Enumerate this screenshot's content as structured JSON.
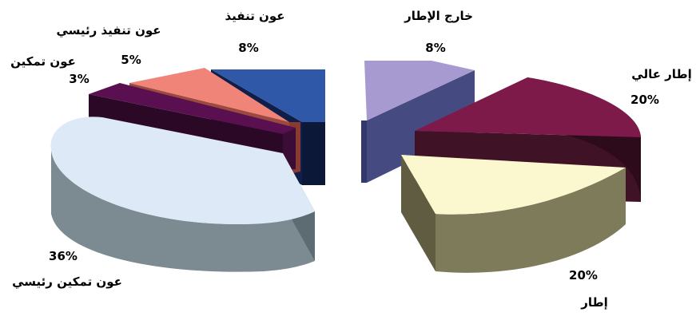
{
  "chart_data": {
    "type": "pie",
    "style": "3d-exploded",
    "labels": [
      {
        "name": "عون تنفيذ",
        "value": 8,
        "display": "8%",
        "color": "#2f58a8",
        "side_color": "#0f1f4a"
      },
      {
        "name": "عون تنفيذ رئيسي",
        "value": 5,
        "display": "5%",
        "color": "#f08478",
        "side_color": "#8a3a30"
      },
      {
        "name": "عون تمكين",
        "value": 3,
        "display": "3%",
        "color": "#5a0f50",
        "side_color": "#2a0826"
      },
      {
        "name": "عون تمكين رئيسي",
        "value": 36,
        "display": "36%",
        "color": "#dde9f7",
        "side_color": "#7c8a92"
      },
      {
        "name": "إطار",
        "value": 20,
        "display": "20%",
        "color": "#fbf8cf",
        "side_color": "#7e7b5a"
      },
      {
        "name": "إطار عالي",
        "value": 20,
        "display": "20%",
        "color": "#7d1a4a",
        "side_color": "#401226"
      },
      {
        "name": "خارج الإطار",
        "value": 8,
        "display": "8%",
        "color": "#a79ad0",
        "side_color": "#454a80"
      }
    ]
  }
}
